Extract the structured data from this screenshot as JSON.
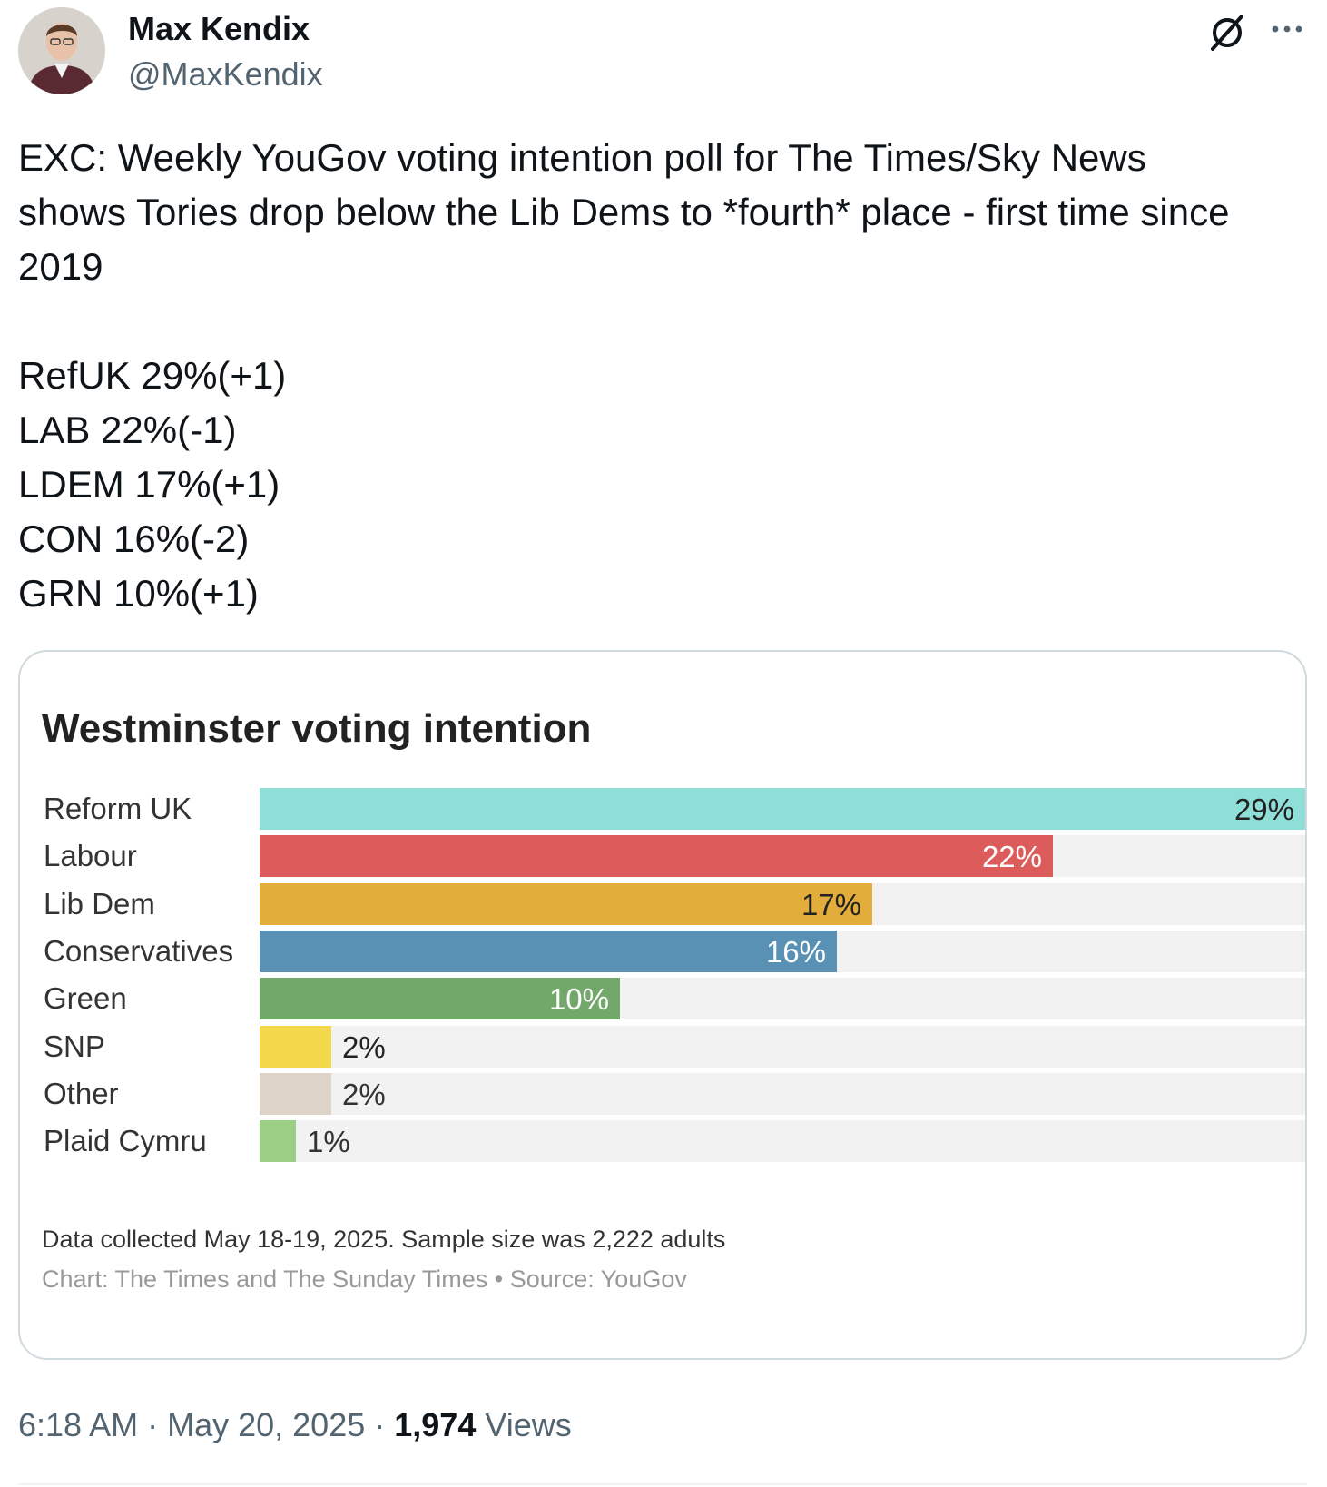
{
  "author": {
    "name": "Max Kendix",
    "handle": "@MaxKendix"
  },
  "icons": {
    "avatar": "profile-photo",
    "grok": "grok-icon",
    "more": "more-icon"
  },
  "tweet": {
    "lines": [
      "EXC: Weekly YouGov voting intention poll for The Times/Sky News",
      "shows Tories drop below the Lib Dems to *fourth* place - first time since",
      "2019"
    ],
    "results": [
      "RefUK 29%(+1)",
      "LAB 22%(-1)",
      "LDEM 17%(+1)",
      "CON 16%(-2)",
      "GRN 10%(+1)"
    ]
  },
  "chart_data": {
    "type": "bar",
    "orientation": "horizontal",
    "title": "Westminster voting intention",
    "categories": [
      "Reform UK",
      "Labour",
      "Lib Dem",
      "Conservatives",
      "Green",
      "SNP",
      "Other",
      "Plaid Cymru"
    ],
    "values": [
      29,
      22,
      17,
      16,
      10,
      2,
      2,
      1
    ],
    "value_labels": [
      "29%",
      "22%",
      "17%",
      "16%",
      "10%",
      "2%",
      "2%",
      "1%"
    ],
    "colors": [
      "#8fded8",
      "#dc5b5b",
      "#e2ad3a",
      "#5891b3",
      "#72a96a",
      "#f2d84a",
      "#ddd3c7",
      "#9ccf83"
    ],
    "label_colors": [
      "#222222",
      "#ffffff",
      "#222222",
      "#ffffff",
      "#ffffff",
      "#222222",
      "#333333",
      "#333333"
    ],
    "xlim": [
      0,
      29
    ],
    "track_color": "#f2f2f2",
    "grid": false,
    "legend": "none",
    "caption": "Data collected May 18-19, 2025. Sample size was 2,222 adults",
    "source": "Chart: The Times and The Sunday Times • Source: YouGov"
  },
  "footer": {
    "time": "6:18 AM",
    "date": "May 20, 2025",
    "views_count": "1,974",
    "views_label": "Views",
    "sep": " · "
  }
}
